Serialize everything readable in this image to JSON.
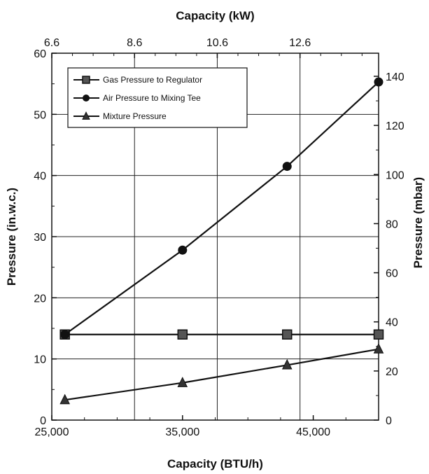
{
  "chart_data": {
    "type": "line",
    "title": "",
    "xlabel": "Capacity (BTU/h)",
    "ylabel": "Pressure (in.w.c.)",
    "top_xlabel": "Capacity (kW)",
    "right_ylabel": "Pressure (mbar)",
    "xlim": [
      25000,
      50000
    ],
    "ylim": [
      0,
      60
    ],
    "right_ylim": [
      0,
      149.4
    ],
    "top_xlim": [
      6.6,
      14.5
    ],
    "x_ticks": [
      25000,
      35000,
      45000
    ],
    "x_tick_labels": [
      "25,000",
      "35,000",
      "45,000"
    ],
    "y_ticks": [
      0,
      10,
      20,
      30,
      40,
      50,
      60
    ],
    "y_tick_labels": [
      "0",
      "10",
      "20",
      "30",
      "40",
      "50",
      "60"
    ],
    "top_x_ticks": [
      6.6,
      8.6,
      10.6,
      12.6
    ],
    "top_x_tick_labels": [
      "6.6",
      "8.6",
      "10.6",
      "12.6"
    ],
    "right_y_ticks": [
      0,
      20,
      40,
      60,
      80,
      100,
      120,
      140
    ],
    "right_y_tick_labels": [
      "0",
      "20",
      "40",
      "60",
      "80",
      "100",
      "120",
      "140"
    ],
    "grid": true,
    "legend_position": "top-left",
    "series": [
      {
        "name": "Gas Pressure to Regulator",
        "marker": "square",
        "x": [
          26000,
          35000,
          43000,
          50000
        ],
        "values": [
          14,
          14,
          14,
          14
        ]
      },
      {
        "name": "Air Pressure to Mixing Tee",
        "marker": "circle",
        "x": [
          26000,
          35000,
          43000,
          50000
        ],
        "values": [
          14,
          27.8,
          41.5,
          55.3
        ]
      },
      {
        "name": "Mixture Pressure",
        "marker": "triangle",
        "x": [
          26000,
          35000,
          43000,
          50000
        ],
        "values": [
          3.3,
          6.1,
          9,
          11.6
        ]
      }
    ]
  }
}
